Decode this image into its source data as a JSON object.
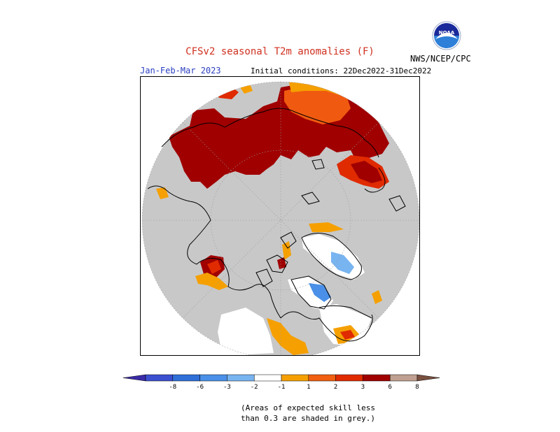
{
  "header": {
    "title": "CFSv2 seasonal T2m anomalies (F)",
    "period": "Jan-Feb-Mar 2023",
    "initial_conditions": "Initial conditions: 22Dec2022-31Dec2022",
    "agency": "NWS/NCEP/CPC",
    "logo_text": "NOAA"
  },
  "legend": {
    "ticks": [
      "-8",
      "-6",
      "-3",
      "-2",
      "-1",
      "1",
      "2",
      "3",
      "6",
      "8"
    ],
    "colors": [
      "#3a2ba8",
      "#3b4fd0",
      "#2f6fd8",
      "#4a90e8",
      "#78b4f0",
      "#ffffff",
      "#f5a000",
      "#f06010",
      "#e02a00",
      "#a00000",
      "#c0a090",
      "#7a5040"
    ]
  },
  "colors": {
    "skill_grey": "#c8c8c8",
    "coast": "#000000"
  },
  "note": {
    "line1": "(Areas of expected skill less",
    "line2": "than 0.3 are shaded in grey.)"
  }
}
